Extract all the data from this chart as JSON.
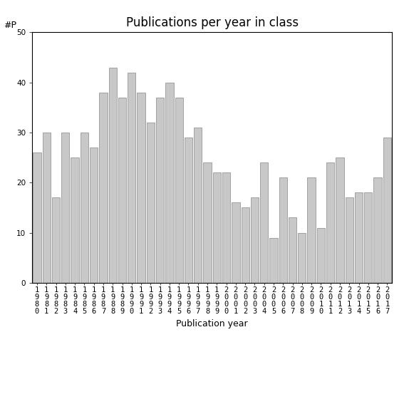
{
  "title": "Publications per year in class",
  "xlabel": "Publication year",
  "ylabel": "#P",
  "years": [
    "1980",
    "1981",
    "1982",
    "1983",
    "1984",
    "1985",
    "1986",
    "1987",
    "1988",
    "1989",
    "1990",
    "1991",
    "1992",
    "1993",
    "1994",
    "1995",
    "1996",
    "1997",
    "1998",
    "1999",
    "2000",
    "2001",
    "2002",
    "2003",
    "2004",
    "2005",
    "2006",
    "2007",
    "2008",
    "2009",
    "2010",
    "2011",
    "2012",
    "2013",
    "2014",
    "2015",
    "2016",
    "2017"
  ],
  "values": [
    26,
    30,
    17,
    30,
    25,
    30,
    27,
    38,
    43,
    37,
    42,
    38,
    32,
    37,
    40,
    37,
    29,
    31,
    24,
    22,
    22,
    16,
    15,
    17,
    24,
    9,
    21,
    13,
    10,
    21,
    11,
    24,
    25,
    17,
    18,
    18,
    21,
    29
  ],
  "bar_color": "#c8c8c8",
  "bar_edge_color": "#888888",
  "ylim": [
    0,
    50
  ],
  "yticks": [
    0,
    10,
    20,
    30,
    40,
    50
  ],
  "bg_color": "#ffffff",
  "title_fontsize": 12,
  "label_fontsize": 9,
  "tick_fontsize": 7.5
}
